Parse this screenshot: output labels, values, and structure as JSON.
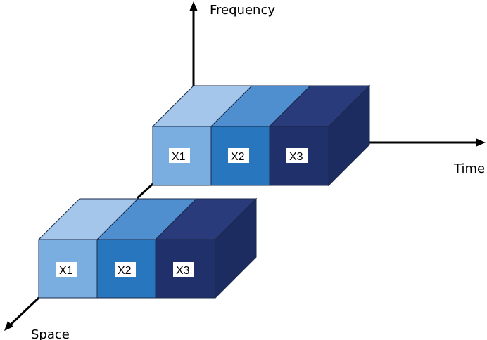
{
  "axes": {
    "frequency": "Frequency",
    "time": "Time",
    "space": "Space"
  },
  "colors": {
    "x1": "#7baee0",
    "x2": "#2877be",
    "x3": "#20306b"
  },
  "stacks": [
    {
      "blocks": [
        {
          "label": "X1"
        },
        {
          "label": "X2"
        },
        {
          "label": "X3"
        }
      ]
    },
    {
      "blocks": [
        {
          "label": "X1"
        },
        {
          "label": "X2"
        },
        {
          "label": "X3"
        }
      ]
    }
  ]
}
